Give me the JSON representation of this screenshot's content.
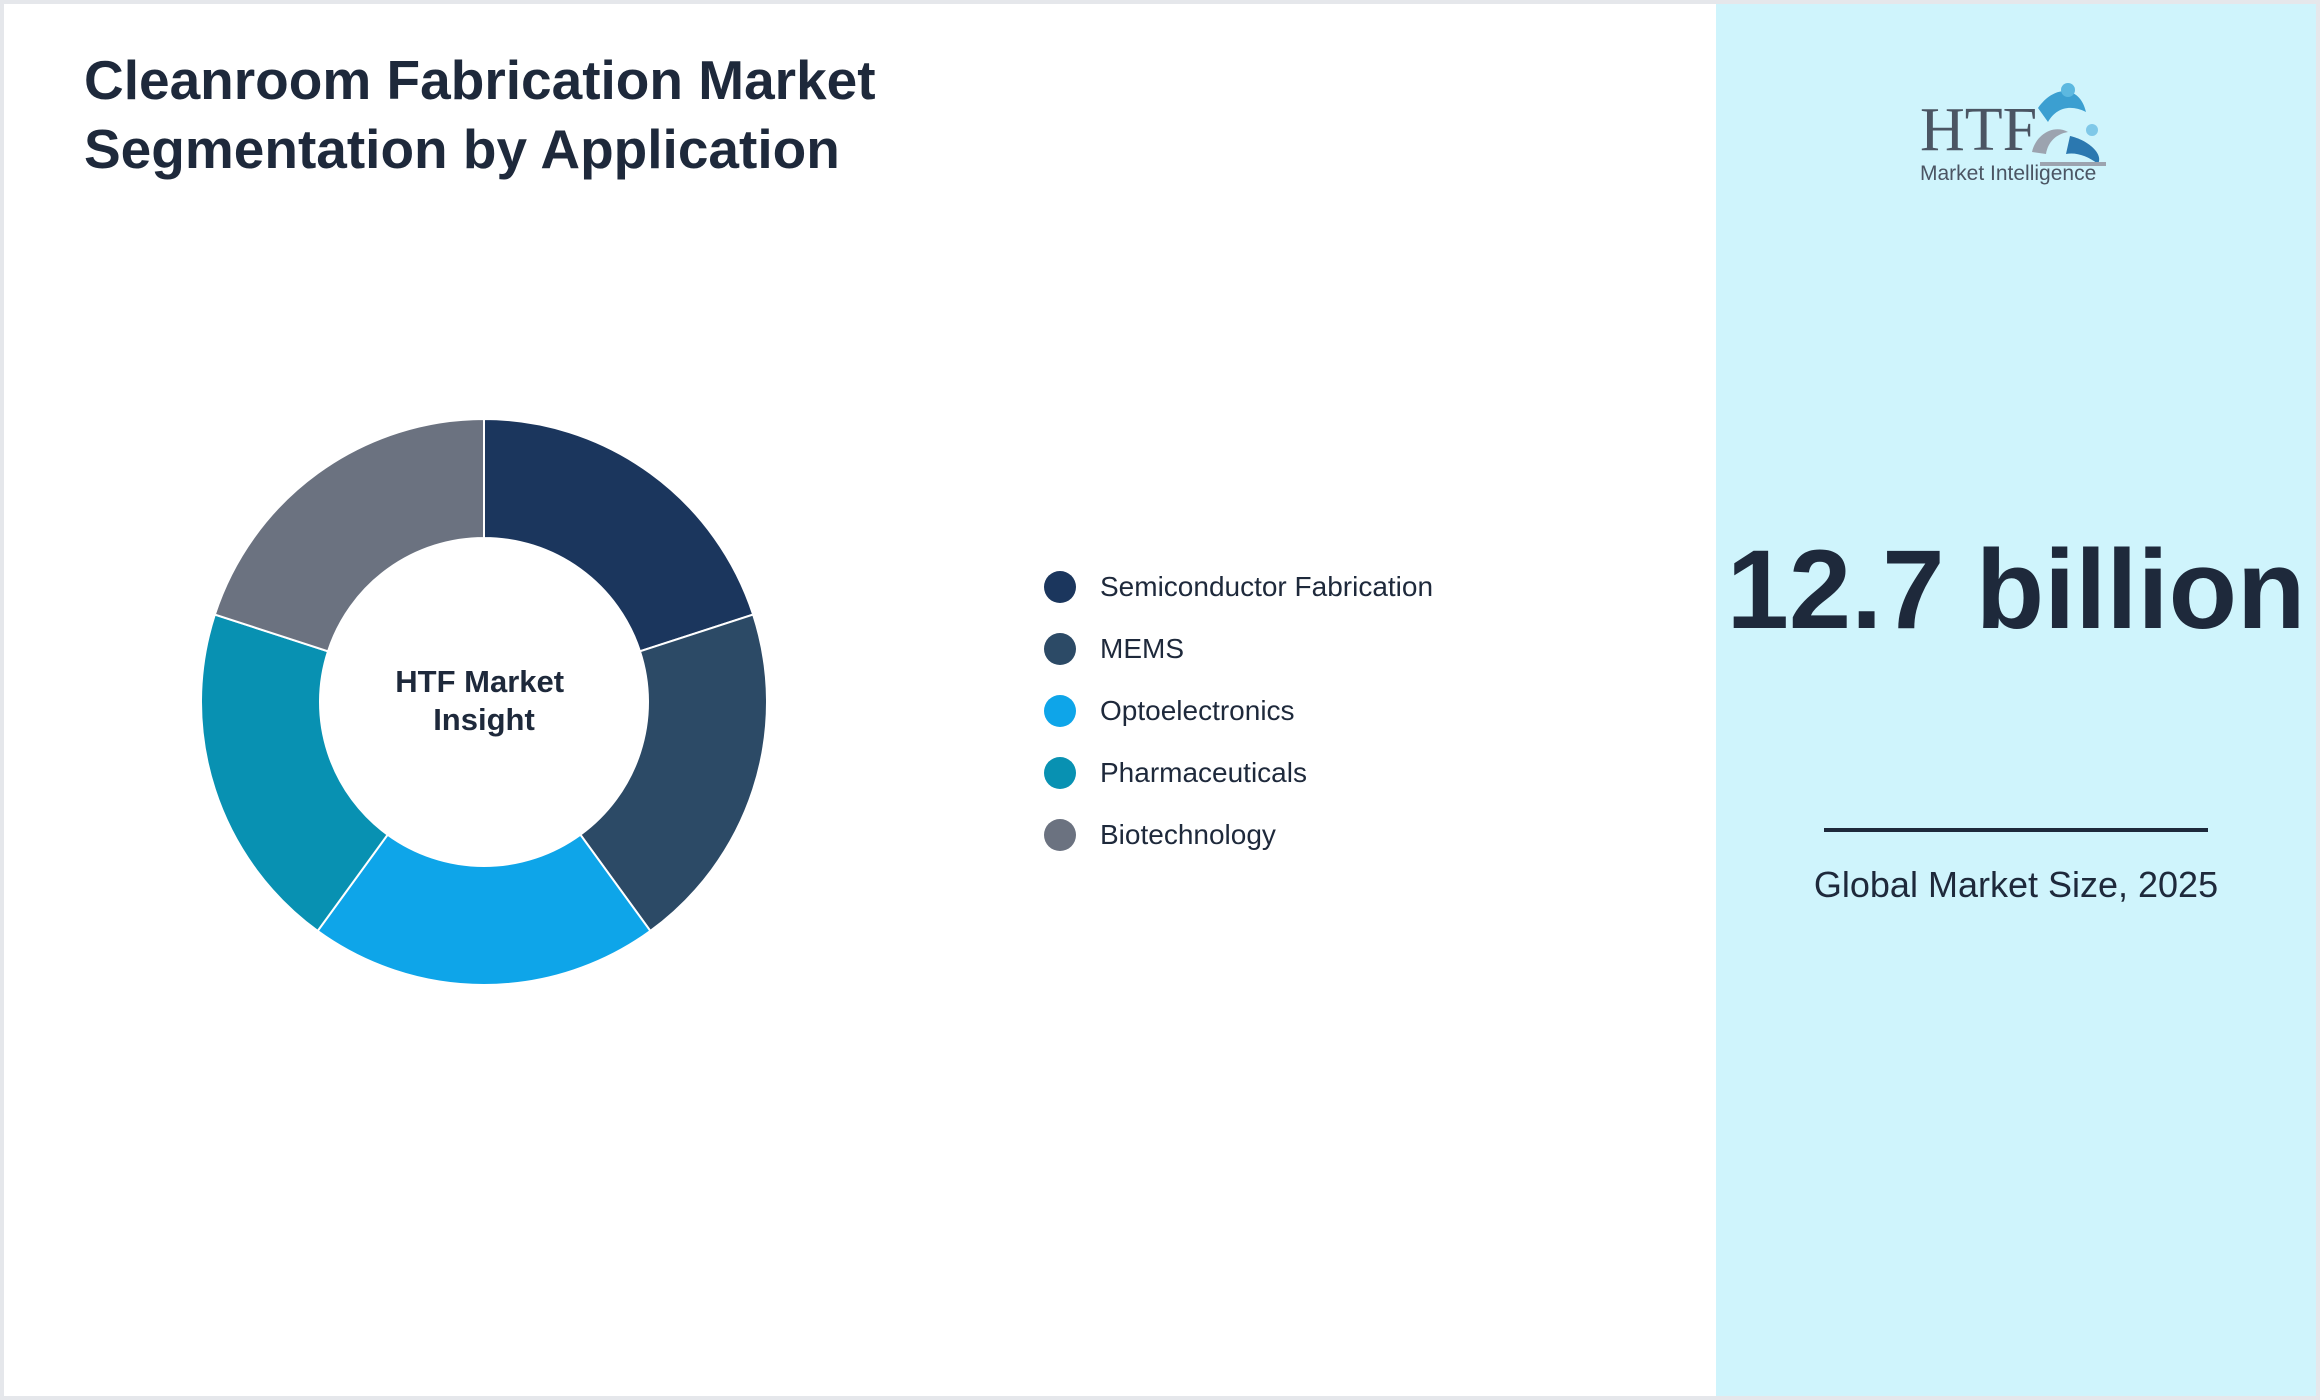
{
  "chart_data": {
    "type": "pie",
    "title": "Cleanroom Fabrication Market Segmentation by Application",
    "center_label": "HTF Market Insight",
    "categories": [
      "Semiconductor Fabrication",
      "MEMS",
      "Optoelectronics",
      "Pharmaceuticals",
      "Biotechnology"
    ],
    "values": [
      20,
      20,
      20,
      20,
      20
    ],
    "colors": [
      "#1b365d",
      "#2c4a66",
      "#0ea5e9",
      "#0891b2",
      "#6b7280"
    ],
    "legend_position": "right"
  },
  "summary": {
    "value": "12.7 billion",
    "caption": "Global Market Size, 2025"
  },
  "logo": {
    "text": "HTF",
    "subtext": "Market Intelligence",
    "icon": "htf-logo-icon"
  },
  "theme": {
    "text_color": "#1e293b",
    "side_panel_bg": "#cff4fc"
  }
}
